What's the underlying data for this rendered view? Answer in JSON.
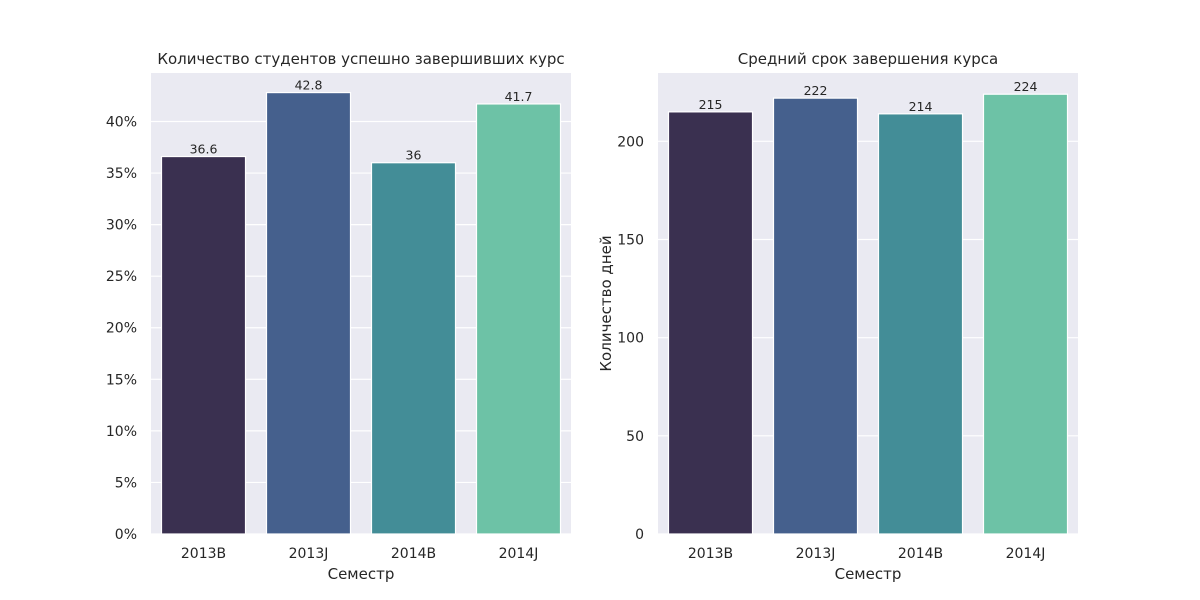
{
  "colors": {
    "plot_background": "#eaeaf2",
    "grid": "#ffffff",
    "bars": [
      "#3a3050",
      "#45608d",
      "#438d97",
      "#6dc2a6"
    ]
  },
  "chart_data": [
    {
      "type": "bar",
      "title": "Количество студентов успешно завершивших курс",
      "xlabel": "Семестр",
      "ylabel": "",
      "categories": [
        "2013B",
        "2013J",
        "2014B",
        "2014J"
      ],
      "values": [
        36.6,
        42.8,
        36,
        41.7
      ],
      "value_labels": [
        "36.6",
        "42.8",
        "36",
        "41.7"
      ],
      "ylim": [
        0,
        44.7
      ],
      "yticks": [
        0,
        5,
        10,
        15,
        20,
        25,
        30,
        35,
        40
      ],
      "ytick_labels": [
        "0%",
        "5%",
        "10%",
        "15%",
        "20%",
        "25%",
        "30%",
        "35%",
        "40%"
      ],
      "grid": true,
      "legend": "none"
    },
    {
      "type": "bar",
      "title": "Средний срок завершения курса",
      "xlabel": "Семестр",
      "ylabel": "Количество дней",
      "categories": [
        "2013B",
        "2013J",
        "2014B",
        "2014J"
      ],
      "values": [
        215,
        222,
        214,
        224
      ],
      "value_labels": [
        "215",
        "222",
        "214",
        "224"
      ],
      "ylim": [
        0,
        234.8
      ],
      "yticks": [
        0,
        50,
        100,
        150,
        200
      ],
      "ytick_labels": [
        "0",
        "50",
        "100",
        "150",
        "200"
      ],
      "grid": true,
      "legend": "none"
    }
  ]
}
